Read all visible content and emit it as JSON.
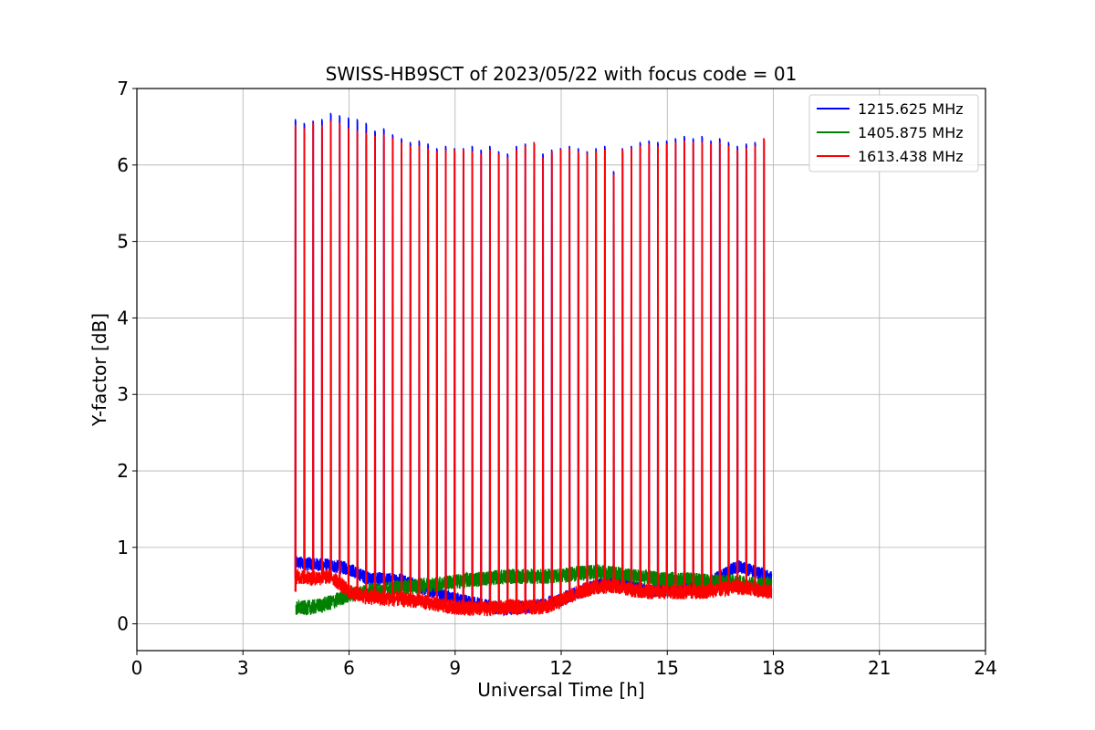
{
  "chart_data": {
    "type": "line",
    "title": "SWISS-HB9SCT of 2023/05/22 with focus code = 01",
    "xlabel": "Universal Time [h]",
    "ylabel": "Y-factor [dB]",
    "xlim": [
      0,
      24
    ],
    "ylim": [
      -0.35,
      7
    ],
    "xticks": [
      0,
      3,
      6,
      9,
      12,
      15,
      18,
      21,
      24
    ],
    "yticks": [
      0,
      1,
      2,
      3,
      4,
      5,
      6,
      7
    ],
    "grid": true,
    "legend_position": "top-right",
    "data_start_h": 4.5,
    "data_end_h": 17.95,
    "calibration_peak_times_h": [
      4.48,
      4.73,
      4.98,
      5.23,
      5.48,
      5.73,
      5.98,
      6.23,
      6.48,
      6.73,
      6.98,
      7.23,
      7.48,
      7.73,
      7.98,
      8.23,
      8.48,
      8.73,
      8.98,
      9.23,
      9.48,
      9.73,
      9.98,
      10.23,
      10.48,
      10.73,
      10.98,
      11.23,
      11.48,
      11.73,
      11.98,
      12.23,
      12.48,
      12.73,
      12.98,
      13.23,
      13.48,
      13.73,
      13.98,
      14.23,
      14.48,
      14.73,
      14.98,
      15.23,
      15.48,
      15.73,
      15.98,
      16.23,
      16.48,
      16.73,
      16.98,
      17.23,
      17.48,
      17.73
    ],
    "series": [
      {
        "name": "1215.625 MHz",
        "color": "#0000ff",
        "peak_values": [
          6.6,
          6.55,
          6.58,
          6.6,
          6.68,
          6.65,
          6.62,
          6.6,
          6.55,
          6.45,
          6.48,
          6.4,
          6.35,
          6.3,
          6.32,
          6.28,
          6.22,
          6.25,
          6.22,
          6.22,
          6.25,
          6.2,
          6.25,
          6.18,
          6.15,
          6.25,
          6.28,
          6.3,
          6.15,
          6.2,
          6.22,
          6.25,
          6.22,
          6.18,
          6.22,
          6.25,
          5.92,
          6.22,
          6.25,
          6.3,
          6.32,
          6.3,
          6.32,
          6.35,
          6.38,
          6.35,
          6.38,
          6.32,
          6.35,
          6.3,
          6.25,
          6.28,
          6.3,
          6.35
        ],
        "baseline_profile": [
          [
            4.5,
            0.8
          ],
          [
            5.0,
            0.78
          ],
          [
            5.5,
            0.76
          ],
          [
            6.0,
            0.72
          ],
          [
            6.5,
            0.6
          ],
          [
            7.0,
            0.58
          ],
          [
            7.5,
            0.58
          ],
          [
            8.0,
            0.48
          ],
          [
            8.5,
            0.4
          ],
          [
            9.0,
            0.32
          ],
          [
            9.5,
            0.28
          ],
          [
            10.0,
            0.22
          ],
          [
            10.5,
            0.2
          ],
          [
            11.0,
            0.22
          ],
          [
            11.5,
            0.25
          ],
          [
            12.0,
            0.32
          ],
          [
            12.5,
            0.42
          ],
          [
            13.0,
            0.5
          ],
          [
            13.5,
            0.55
          ],
          [
            14.0,
            0.48
          ],
          [
            14.5,
            0.42
          ],
          [
            15.0,
            0.45
          ],
          [
            15.5,
            0.45
          ],
          [
            16.0,
            0.5
          ],
          [
            16.5,
            0.62
          ],
          [
            17.0,
            0.75
          ],
          [
            17.5,
            0.68
          ],
          [
            17.95,
            0.6
          ]
        ],
        "noise": 0.09
      },
      {
        "name": "1405.875 MHz",
        "color": "#008000",
        "peak_values": [],
        "baseline_profile": [
          [
            4.5,
            0.2
          ],
          [
            5.0,
            0.22
          ],
          [
            5.5,
            0.28
          ],
          [
            6.0,
            0.38
          ],
          [
            6.5,
            0.42
          ],
          [
            7.0,
            0.45
          ],
          [
            7.5,
            0.48
          ],
          [
            8.0,
            0.5
          ],
          [
            8.5,
            0.52
          ],
          [
            9.0,
            0.55
          ],
          [
            9.5,
            0.58
          ],
          [
            10.0,
            0.6
          ],
          [
            10.5,
            0.62
          ],
          [
            11.0,
            0.62
          ],
          [
            11.5,
            0.62
          ],
          [
            12.0,
            0.63
          ],
          [
            12.5,
            0.66
          ],
          [
            13.0,
            0.68
          ],
          [
            13.5,
            0.66
          ],
          [
            14.0,
            0.62
          ],
          [
            14.5,
            0.6
          ],
          [
            15.0,
            0.58
          ],
          [
            15.5,
            0.58
          ],
          [
            16.0,
            0.56
          ],
          [
            16.5,
            0.55
          ],
          [
            17.0,
            0.55
          ],
          [
            17.5,
            0.52
          ],
          [
            17.95,
            0.52
          ]
        ],
        "noise": 0.1
      },
      {
        "name": "1613.438 MHz",
        "color": "#ff0000",
        "peak_values": [
          6.52,
          6.48,
          6.55,
          6.52,
          6.58,
          6.55,
          6.48,
          6.45,
          6.42,
          6.38,
          6.4,
          6.35,
          6.3,
          6.25,
          6.25,
          6.22,
          6.18,
          6.2,
          6.2,
          6.2,
          6.18,
          6.15,
          6.2,
          6.15,
          6.1,
          6.2,
          6.25,
          6.3,
          6.1,
          6.18,
          6.2,
          6.22,
          6.18,
          6.15,
          6.18,
          6.2,
          5.88,
          6.2,
          6.22,
          6.25,
          6.28,
          6.25,
          6.28,
          6.3,
          6.32,
          6.3,
          6.3,
          6.28,
          6.3,
          6.25,
          6.2,
          6.22,
          6.25,
          6.35
        ],
        "baseline_profile": [
          [
            4.5,
            0.62
          ],
          [
            5.0,
            0.6
          ],
          [
            5.5,
            0.62
          ],
          [
            6.0,
            0.42
          ],
          [
            6.5,
            0.35
          ],
          [
            7.0,
            0.33
          ],
          [
            7.5,
            0.32
          ],
          [
            8.0,
            0.3
          ],
          [
            8.5,
            0.25
          ],
          [
            9.0,
            0.22
          ],
          [
            9.5,
            0.2
          ],
          [
            10.0,
            0.2
          ],
          [
            10.5,
            0.22
          ],
          [
            11.0,
            0.22
          ],
          [
            11.5,
            0.22
          ],
          [
            12.0,
            0.3
          ],
          [
            12.5,
            0.42
          ],
          [
            13.0,
            0.48
          ],
          [
            13.5,
            0.5
          ],
          [
            14.0,
            0.45
          ],
          [
            14.5,
            0.42
          ],
          [
            15.0,
            0.42
          ],
          [
            15.5,
            0.42
          ],
          [
            16.0,
            0.42
          ],
          [
            16.5,
            0.45
          ],
          [
            17.0,
            0.48
          ],
          [
            17.5,
            0.45
          ],
          [
            17.95,
            0.42
          ]
        ],
        "noise": 0.1
      }
    ]
  }
}
